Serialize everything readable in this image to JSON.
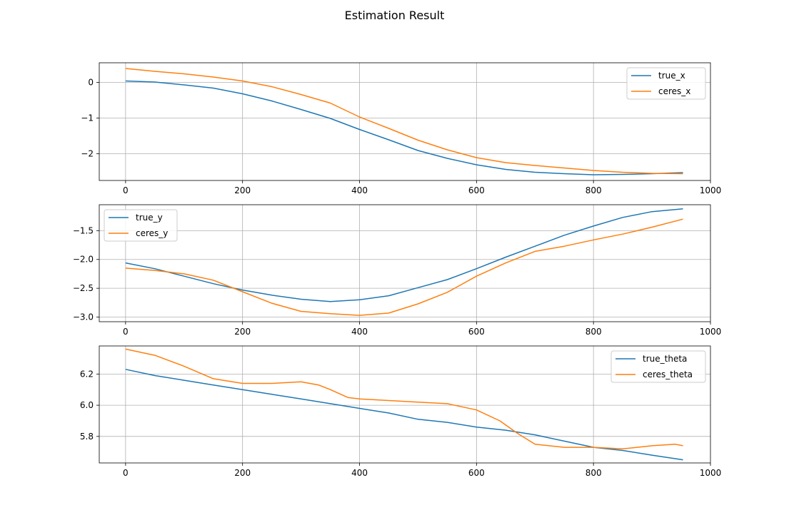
{
  "figure": {
    "title": "Estimation Result"
  },
  "colors": {
    "true": "#1f77b4",
    "ceres": "#ff7f0e",
    "grid": "#b0b0b0",
    "axis": "#000000"
  },
  "chart_data": [
    {
      "type": "line",
      "xlim": [
        -45,
        1000
      ],
      "ylim": [
        -2.75,
        0.55
      ],
      "xticks": [
        0,
        200,
        400,
        600,
        800,
        1000
      ],
      "yticks": [
        0,
        -1,
        -2
      ],
      "ytick_labels": [
        "0",
        "−1",
        "−2"
      ],
      "grid": true,
      "legend_position": "upper right",
      "series": [
        {
          "name": "true_x",
          "color": "#1f77b4",
          "x": [
            0,
            50,
            100,
            150,
            200,
            250,
            300,
            350,
            400,
            450,
            500,
            550,
            600,
            650,
            700,
            750,
            800,
            850,
            900,
            953
          ],
          "y": [
            0.04,
            0.01,
            -0.07,
            -0.16,
            -0.32,
            -0.52,
            -0.76,
            -1.01,
            -1.32,
            -1.61,
            -1.91,
            -2.13,
            -2.31,
            -2.44,
            -2.52,
            -2.56,
            -2.59,
            -2.58,
            -2.56,
            -2.53
          ]
        },
        {
          "name": "ceres_x",
          "color": "#ff7f0e",
          "x": [
            0,
            50,
            100,
            150,
            200,
            250,
            300,
            350,
            400,
            450,
            500,
            550,
            600,
            650,
            700,
            750,
            800,
            850,
            900,
            953
          ],
          "y": [
            0.39,
            0.31,
            0.24,
            0.15,
            0.04,
            -0.12,
            -0.34,
            -0.58,
            -0.97,
            -1.29,
            -1.62,
            -1.89,
            -2.11,
            -2.25,
            -2.33,
            -2.4,
            -2.47,
            -2.52,
            -2.55,
            -2.56
          ]
        }
      ]
    },
    {
      "type": "line",
      "xlim": [
        -45,
        1000
      ],
      "ylim": [
        -3.08,
        -1.05
      ],
      "xticks": [
        0,
        200,
        400,
        600,
        800,
        1000
      ],
      "yticks": [
        -1.5,
        -2.0,
        -2.5,
        -3.0
      ],
      "ytick_labels": [
        "−1.5",
        "−2.0",
        "−2.5",
        "−3.0"
      ],
      "grid": true,
      "legend_position": "upper left",
      "series": [
        {
          "name": "true_y",
          "color": "#1f77b4",
          "x": [
            0,
            50,
            100,
            150,
            200,
            250,
            300,
            350,
            400,
            450,
            500,
            550,
            600,
            650,
            700,
            750,
            800,
            850,
            900,
            953
          ],
          "y": [
            -2.06,
            -2.16,
            -2.29,
            -2.42,
            -2.53,
            -2.62,
            -2.69,
            -2.73,
            -2.7,
            -2.63,
            -2.49,
            -2.35,
            -2.16,
            -1.96,
            -1.77,
            -1.58,
            -1.42,
            -1.27,
            -1.17,
            -1.12
          ]
        },
        {
          "name": "ceres_y",
          "color": "#ff7f0e",
          "x": [
            0,
            50,
            100,
            150,
            200,
            250,
            300,
            350,
            400,
            450,
            500,
            550,
            600,
            650,
            700,
            750,
            800,
            850,
            900,
            953
          ],
          "y": [
            -2.15,
            -2.19,
            -2.25,
            -2.36,
            -2.56,
            -2.76,
            -2.9,
            -2.94,
            -2.97,
            -2.93,
            -2.77,
            -2.57,
            -2.29,
            -2.06,
            -1.86,
            -1.77,
            -1.66,
            -1.56,
            -1.44,
            -1.3
          ]
        }
      ]
    },
    {
      "type": "line",
      "xlim": [
        -45,
        1000
      ],
      "ylim": [
        5.63,
        6.38
      ],
      "xticks": [
        0,
        200,
        400,
        600,
        800,
        1000
      ],
      "yticks": [
        5.8,
        6.0,
        6.2
      ],
      "ytick_labels": [
        "5.8",
        "6.0",
        "6.2"
      ],
      "grid": true,
      "legend_position": "upper right",
      "series": [
        {
          "name": "true_theta",
          "color": "#1f77b4",
          "x": [
            0,
            50,
            100,
            150,
            200,
            250,
            300,
            350,
            400,
            450,
            500,
            550,
            600,
            650,
            700,
            750,
            800,
            850,
            900,
            953
          ],
          "y": [
            6.23,
            6.19,
            6.16,
            6.13,
            6.1,
            6.07,
            6.04,
            6.01,
            5.98,
            5.95,
            5.91,
            5.89,
            5.86,
            5.84,
            5.81,
            5.77,
            5.73,
            5.71,
            5.68,
            5.65
          ]
        },
        {
          "name": "ceres_theta",
          "color": "#ff7f0e",
          "x": [
            0,
            50,
            100,
            150,
            200,
            250,
            300,
            330,
            350,
            380,
            400,
            450,
            500,
            550,
            600,
            640,
            670,
            700,
            750,
            800,
            850,
            900,
            940,
            953
          ],
          "y": [
            6.36,
            6.32,
            6.25,
            6.17,
            6.14,
            6.14,
            6.15,
            6.13,
            6.1,
            6.05,
            6.04,
            6.03,
            6.02,
            6.01,
            5.97,
            5.9,
            5.82,
            5.75,
            5.73,
            5.73,
            5.72,
            5.74,
            5.75,
            5.74
          ]
        }
      ]
    }
  ]
}
